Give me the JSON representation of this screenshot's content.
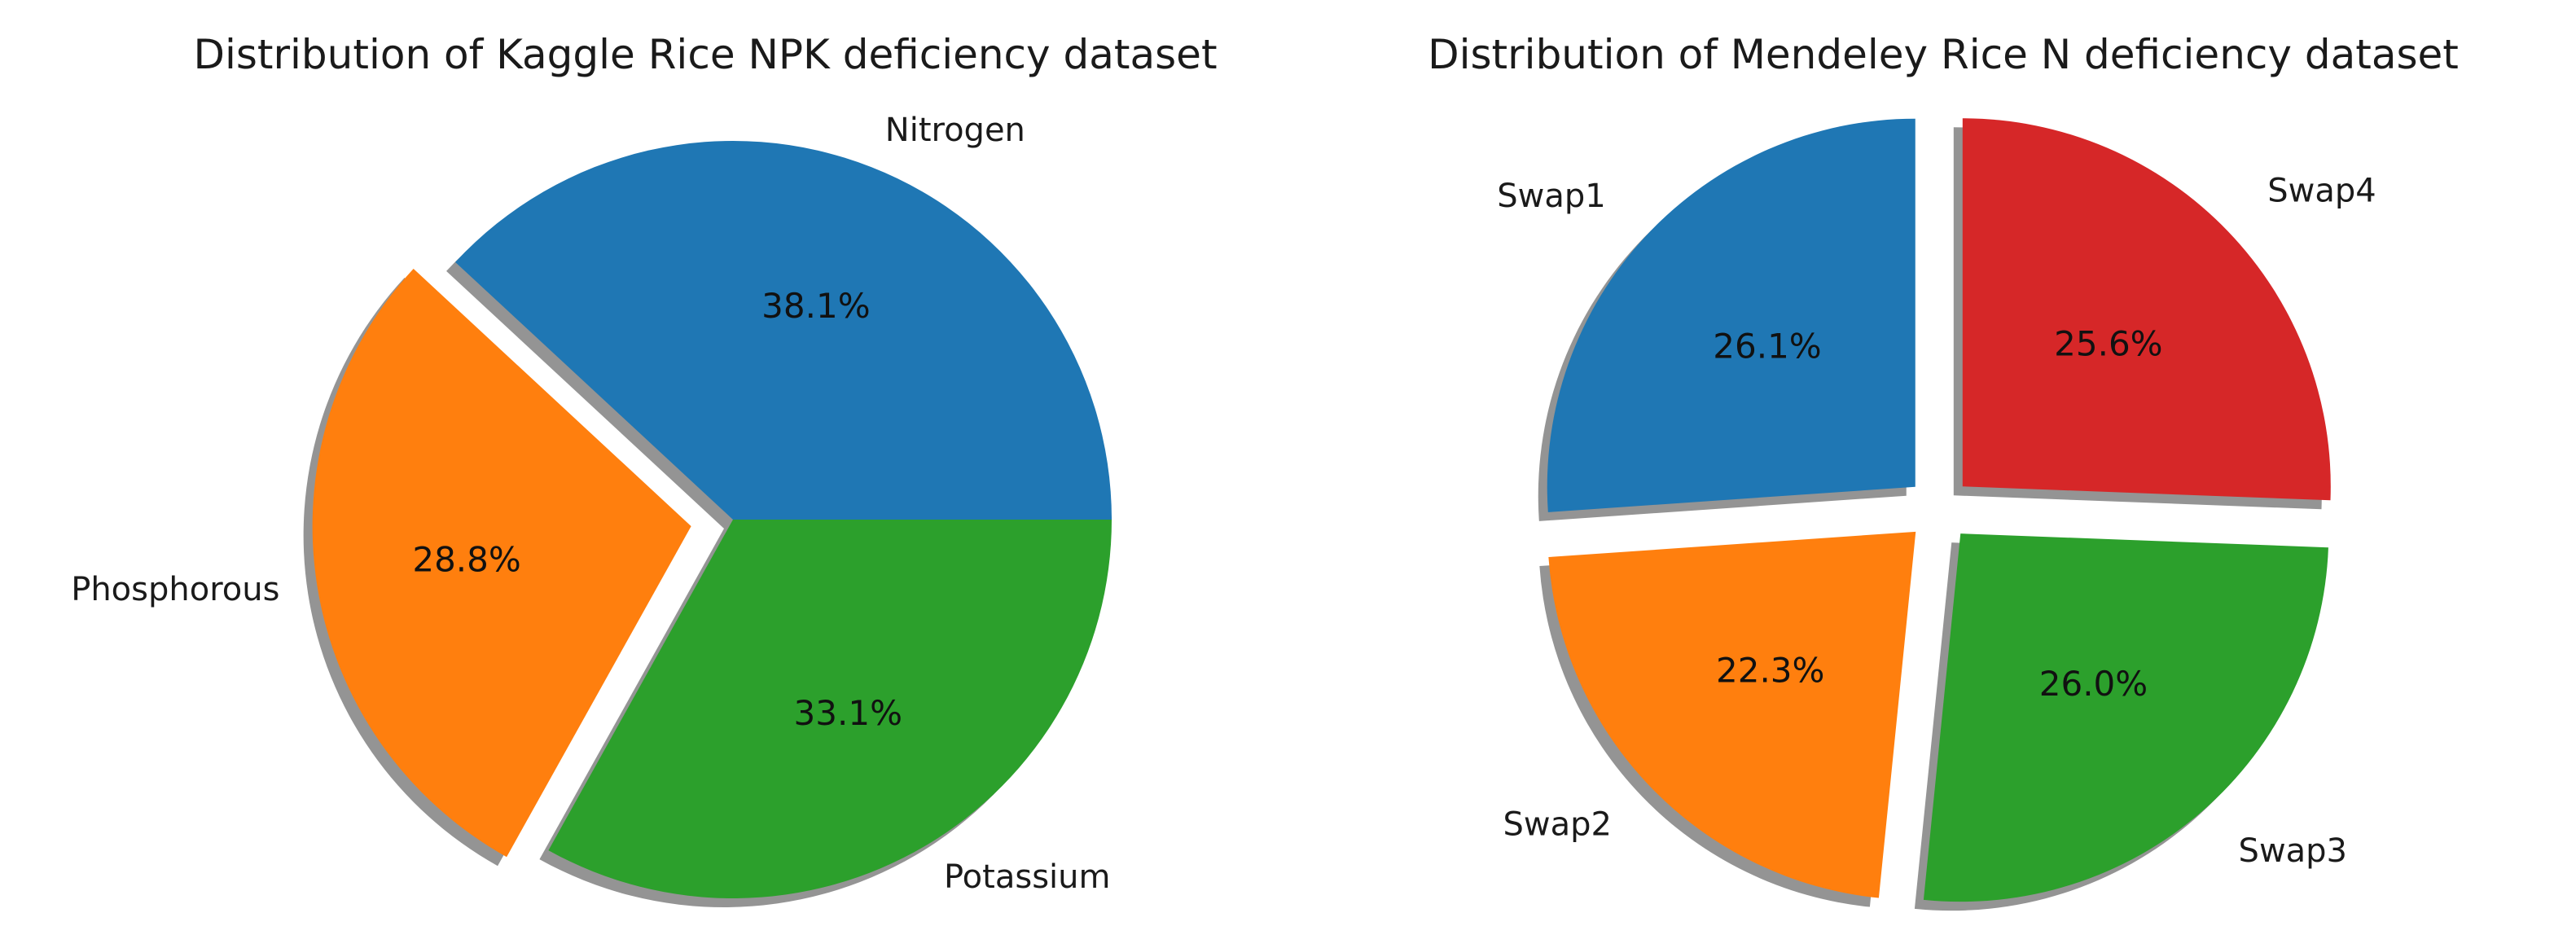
{
  "chart_data": [
    {
      "type": "pie",
      "title": "Distribution of Kaggle Rice NPK deficiency dataset",
      "categories": [
        "Nitrogen",
        "Phosphorous",
        "Potassium"
      ],
      "values": [
        38.1,
        28.8,
        33.1
      ],
      "value_labels": [
        "38.1%",
        "28.8%",
        "33.1%"
      ],
      "colors": [
        "#1f77b4",
        "#ff7f0e",
        "#2ca02c"
      ],
      "exploded": [
        "Phosphorous"
      ],
      "shadow": true,
      "start": "right, counter-clockwise"
    },
    {
      "type": "pie",
      "title": "Distribution of Mendeley Rice N deficiency dataset",
      "categories": [
        "Swap1",
        "Swap2",
        "Swap3",
        "Swap4"
      ],
      "values": [
        26.1,
        22.3,
        26.0,
        25.6
      ],
      "value_labels": [
        "26.1%",
        "22.3%",
        "26.0%",
        "25.6%"
      ],
      "colors": [
        "#1f77b4",
        "#ff7f0e",
        "#2ca02c",
        "#d62728"
      ],
      "exploded": [
        "Swap1",
        "Swap2",
        "Swap3",
        "Swap4"
      ],
      "shadow": true,
      "start": "top, counter-clockwise"
    }
  ]
}
